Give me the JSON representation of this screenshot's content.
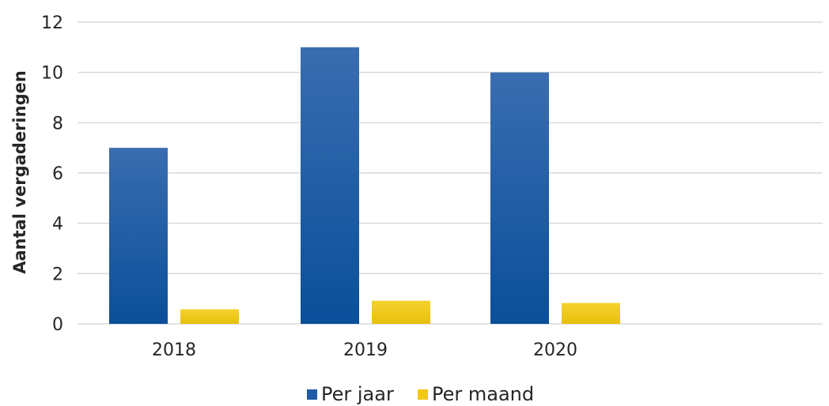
{
  "chart_data": {
    "type": "bar",
    "title": "",
    "xlabel": "",
    "ylabel": "Aantal vergaderingen",
    "categories": [
      "2018",
      "2019",
      "2020"
    ],
    "series": [
      {
        "name": "Per jaar",
        "values": [
          7,
          11,
          10
        ],
        "color": "#1f5aa6"
      },
      {
        "name": "Per maand",
        "values": [
          0.58,
          0.92,
          0.83
        ],
        "color": "#f2c811"
      }
    ],
    "ylim": [
      0,
      12
    ],
    "yticks": [
      0,
      2,
      4,
      6,
      8,
      10,
      12
    ],
    "grid": true,
    "legend_position": "bottom"
  }
}
